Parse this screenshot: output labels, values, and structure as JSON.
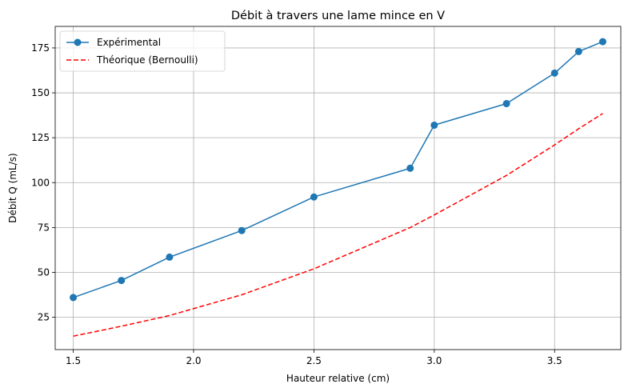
{
  "chart_data": {
    "type": "line",
    "title": "Débit à travers une lame mince en V",
    "xlabel": "Hauteur relative (cm)",
    "ylabel": "Débit Q (mL/s)",
    "xlim": [
      1.425,
      3.775
    ],
    "ylim": [
      7,
      187
    ],
    "xticks": [
      1.5,
      2.0,
      2.5,
      3.0,
      3.5
    ],
    "xtick_labels": [
      "1.5",
      "2.0",
      "2.5",
      "3.0",
      "3.5"
    ],
    "yticks": [
      25,
      50,
      75,
      100,
      125,
      150,
      175
    ],
    "ytick_labels": [
      "25",
      "50",
      "75",
      "100",
      "125",
      "150",
      "175"
    ],
    "grid": true,
    "legend_position": "top-left",
    "series": [
      {
        "name": "Expérimental",
        "color": "#1f77b4",
        "style": "solid",
        "marker": "circle",
        "x": [
          1.5,
          1.7,
          1.9,
          2.2,
          2.5,
          2.9,
          3.0,
          3.3,
          3.5,
          3.6,
          3.7
        ],
        "y": [
          36,
          45.5,
          58.5,
          73.3,
          92,
          108,
          132,
          144,
          161,
          173,
          178.5
        ]
      },
      {
        "name": "Théorique (Bernoulli)",
        "color": "#ff0000",
        "style": "dashed",
        "marker": "none",
        "x": [
          1.5,
          1.7,
          1.9,
          2.2,
          2.5,
          2.9,
          3.0,
          3.3,
          3.5,
          3.6,
          3.7
        ],
        "y": [
          14.5,
          20,
          26,
          37.5,
          52,
          75,
          82,
          104,
          121,
          130,
          138.5
        ]
      }
    ]
  }
}
